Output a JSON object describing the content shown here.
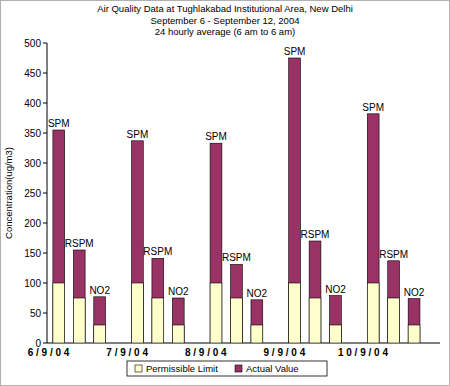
{
  "chart_data": {
    "type": "bar",
    "title": "Air Quality Data at Tughlakabad Institutional Area, New Delhi",
    "subtitle": [
      "September 6 - September 12, 2004",
      "24 hourly average (6 am to 6 am)"
    ],
    "y_label": "Concentration(ug/m3)",
    "x_groups": [
      "6 / 9 / 0 4",
      "7 / 9 / 0 4",
      "8 / 9 / 0 4",
      "9 / 9 / 0 4",
      "1 0 / 9 / 0 4"
    ],
    "categories": [
      "SPM",
      "RSPM",
      "NO2",
      "SPM",
      "RSPM",
      "NO2",
      "SPM",
      "RSPM",
      "NO2",
      "SPM",
      "RSPM",
      "NO2",
      "SPM",
      "RSPM",
      "NO2"
    ],
    "series": [
      {
        "name": "Actual Value",
        "color": "#993366",
        "values": [
          355,
          155,
          77,
          337,
          141,
          75,
          333,
          131,
          72,
          475,
          170,
          79,
          382,
          137,
          74
        ]
      },
      {
        "name": "Permissible Limit",
        "color": "#ffffcc",
        "values": [
          100,
          75,
          30,
          100,
          75,
          30,
          100,
          75,
          30,
          100,
          75,
          30,
          100,
          75,
          30
        ]
      }
    ],
    "legend_order": [
      1,
      0
    ],
    "stacked": false,
    "grid": false,
    "legend": "bottom",
    "ylim": [
      0,
      500
    ],
    "yticks": [
      0,
      50,
      100,
      150,
      200,
      250,
      300,
      350,
      400,
      450,
      500
    ]
  }
}
